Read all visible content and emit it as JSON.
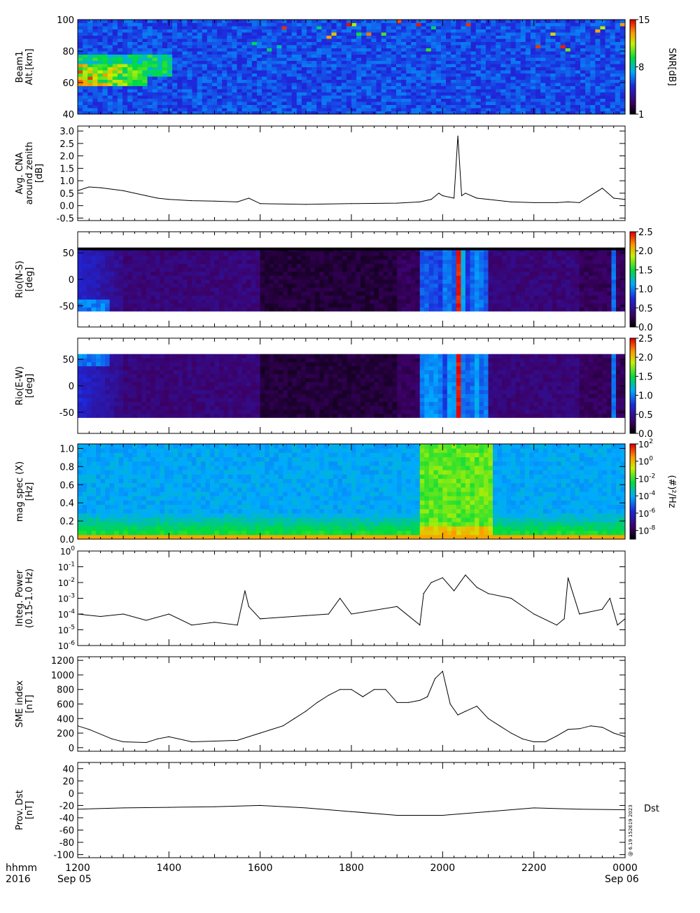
{
  "colors": {
    "axis": "#000000",
    "trace": "#000000",
    "background": "#ffffff"
  },
  "time_axis": {
    "label_row1": "hhmm",
    "label_row2": "2016",
    "ticks": [
      "1200",
      "1400",
      "1600",
      "1800",
      "2000",
      "2200",
      "0000"
    ],
    "date_start": "Sep 05",
    "date_end": "Sep 06"
  },
  "side_note": "@ 6.19 152619 2023",
  "dst_label": "Dst",
  "chart_data": [
    {
      "type": "heatmap",
      "ylabel_lines": [
        "Beam1",
        "Alt.[km]"
      ],
      "ylim": [
        40,
        100
      ],
      "yticks": [
        "100",
        "80",
        "60",
        "40"
      ],
      "colorbar": {
        "label": "SNR[dB]",
        "range": [
          1,
          15
        ],
        "ticks": [
          "15",
          "8",
          "1"
        ],
        "colormap": "rainbow"
      },
      "features": [
        "strong echoes 58-72 km between 1200 and 1330",
        "weak echoes 65-78 km extending to about 1400",
        "sparse isolated pixels above 80 km after 1530"
      ]
    },
    {
      "type": "line",
      "ylabel_lines": [
        "Avg. CNA",
        "around zenith",
        "[dB]"
      ],
      "ylim": [
        -0.6,
        3.2
      ],
      "yticks": [
        "3.0",
        "2.5",
        "2.0",
        "1.5",
        "1.0",
        "0.5",
        "0.0",
        "-0.5"
      ],
      "x": [
        "1200",
        "1215",
        "1230",
        "1300",
        "1330",
        "1345",
        "1400",
        "1430",
        "1500",
        "1530",
        "1545",
        "1600",
        "1700",
        "1800",
        "1900",
        "1930",
        "1945",
        "1955",
        "2000",
        "2015",
        "2020",
        "2025",
        "2030",
        "2045",
        "2100",
        "2130",
        "2200",
        "2230",
        "2245",
        "2300",
        "2330",
        "2345",
        "0000"
      ],
      "y": [
        0.6,
        0.75,
        0.72,
        0.6,
        0.4,
        0.3,
        0.25,
        0.2,
        0.18,
        0.15,
        0.3,
        0.08,
        0.05,
        0.08,
        0.1,
        0.15,
        0.25,
        0.5,
        0.4,
        0.3,
        2.8,
        0.4,
        0.5,
        0.3,
        0.25,
        0.15,
        0.12,
        0.12,
        0.15,
        0.12,
        0.7,
        0.3,
        0.25
      ]
    },
    {
      "type": "heatmap",
      "ylabel_lines": [
        "Rio(N-S)",
        "[deg]"
      ],
      "ylim": [
        -90,
        90
      ],
      "yticks": [
        "50",
        "0",
        "-50"
      ],
      "colorbar": {
        "range": [
          0,
          2.5
        ],
        "ticks": [
          "2.5",
          "2.0",
          "1.5",
          "1.0",
          "0.5",
          "0.0"
        ],
        "colormap": "rainbow"
      },
      "features": [
        "0.6-0.9 near -50 deg at 1200-1230",
        "near zero 1600-1900",
        "vertical streaks about 1.0 at 1940-2100, peak 2.5 at 2020",
        "vertical streak about 0.8 at 2340"
      ]
    },
    {
      "type": "heatmap",
      "ylabel_lines": [
        "Rio(E-W)",
        "[deg]"
      ],
      "ylim": [
        -90,
        90
      ],
      "yticks": [
        "50",
        "0",
        "-50"
      ],
      "colorbar": {
        "range": [
          0,
          2.5
        ],
        "ticks": [
          "2.5",
          "2.0",
          "1.5",
          "1.0",
          "0.5",
          "0.0"
        ],
        "colormap": "rainbow"
      },
      "features": [
        "0.6-0.9 near +50 deg at 1200-1230",
        "near zero 1600-1900",
        "vertical streaks about 1.0 at 1940-2100, peak 2.5 at 2020",
        "vertical streak about 0.8 at 2340"
      ]
    },
    {
      "type": "heatmap",
      "ylabel_lines": [
        "mag spec (X)",
        "[Hz]"
      ],
      "ylim": [
        0,
        1.05
      ],
      "yticks": [
        "1.0",
        "0.8",
        "0.6",
        "0.4",
        "0.2",
        "0.0"
      ],
      "colorbar": {
        "label": "(#)²/Hz",
        "range_log10": [
          -9,
          2
        ],
        "tick_exponents": [
          "2",
          "0",
          "-2",
          "-4",
          "-6",
          "-8"
        ],
        "colormap": "rainbow"
      },
      "features": [
        "background about 1e-6 above 0.3 Hz",
        "enhanced power about 1e-2 all frequencies 1930-2100",
        "narrow burst at 2250",
        "strong power below 0.05 Hz throughout"
      ]
    },
    {
      "type": "line",
      "ylabel_lines": [
        "Integ. Power",
        "(0.15-1.0 Hz)"
      ],
      "yscale": "log",
      "ylim": [
        1e-06,
        1
      ],
      "tick_exponents": [
        "0",
        "-1",
        "-2",
        "-3",
        "-4",
        "-5",
        "-6"
      ],
      "x": [
        "1200",
        "1230",
        "1300",
        "1330",
        "1400",
        "1430",
        "1500",
        "1530",
        "1540",
        "1545",
        "1600",
        "1700",
        "1730",
        "1745",
        "1800",
        "1900",
        "1930",
        "1935",
        "1945",
        "2000",
        "2015",
        "2030",
        "2045",
        "2100",
        "2130",
        "2200",
        "2230",
        "2240",
        "2245",
        "2300",
        "2330",
        "2340",
        "2350",
        "0000"
      ],
      "y": [
        0.0001,
        7e-05,
        0.0001,
        4e-05,
        0.0001,
        2e-05,
        3e-05,
        2e-05,
        0.003,
        0.0003,
        5e-05,
        8e-05,
        0.0001,
        0.001,
        0.0001,
        0.0003,
        2e-05,
        0.002,
        0.01,
        0.02,
        0.003,
        0.03,
        0.005,
        0.002,
        0.001,
        0.0001,
        2e-05,
        5e-05,
        0.02,
        0.0001,
        0.0002,
        0.001,
        2e-05,
        5e-05
      ]
    },
    {
      "type": "line",
      "ylabel_lines": [
        "SME index",
        "[nT]"
      ],
      "ylim": [
        -50,
        1250
      ],
      "yticks": [
        "1200",
        "1000",
        "800",
        "600",
        "400",
        "200",
        "0"
      ],
      "x": [
        "1200",
        "1215",
        "1245",
        "1300",
        "1330",
        "1345",
        "1400",
        "1430",
        "1500",
        "1530",
        "1600",
        "1630",
        "1645",
        "1700",
        "1715",
        "1730",
        "1745",
        "1800",
        "1815",
        "1830",
        "1845",
        "1900",
        "1915",
        "1930",
        "1940",
        "1950",
        "2000",
        "2010",
        "2020",
        "2030",
        "2045",
        "2100",
        "2115",
        "2130",
        "2145",
        "2200",
        "2215",
        "2230",
        "2245",
        "2300",
        "2315",
        "2330",
        "2345",
        "0000"
      ],
      "y": [
        300,
        250,
        120,
        80,
        70,
        120,
        150,
        80,
        90,
        100,
        200,
        300,
        400,
        500,
        620,
        720,
        800,
        800,
        700,
        800,
        800,
        620,
        620,
        650,
        700,
        950,
        1050,
        600,
        450,
        500,
        570,
        400,
        300,
        200,
        120,
        80,
        80,
        160,
        250,
        260,
        300,
        280,
        200,
        150
      ]
    },
    {
      "type": "line",
      "ylabel_lines": [
        "Prov. Dst",
        "[nT]"
      ],
      "ylim": [
        -105,
        50
      ],
      "yticks": [
        "40",
        "20",
        "0",
        "-20",
        "-40",
        "-60",
        "-80",
        "-100"
      ],
      "x": [
        "1200",
        "1300",
        "1400",
        "1500",
        "1600",
        "1700",
        "1800",
        "1900",
        "2000",
        "2100",
        "2200",
        "2300",
        "0000"
      ],
      "y": [
        -26,
        -24,
        -23,
        -22,
        -20,
        -24,
        -30,
        -36,
        -36,
        -30,
        -24,
        -26,
        -27
      ]
    }
  ]
}
